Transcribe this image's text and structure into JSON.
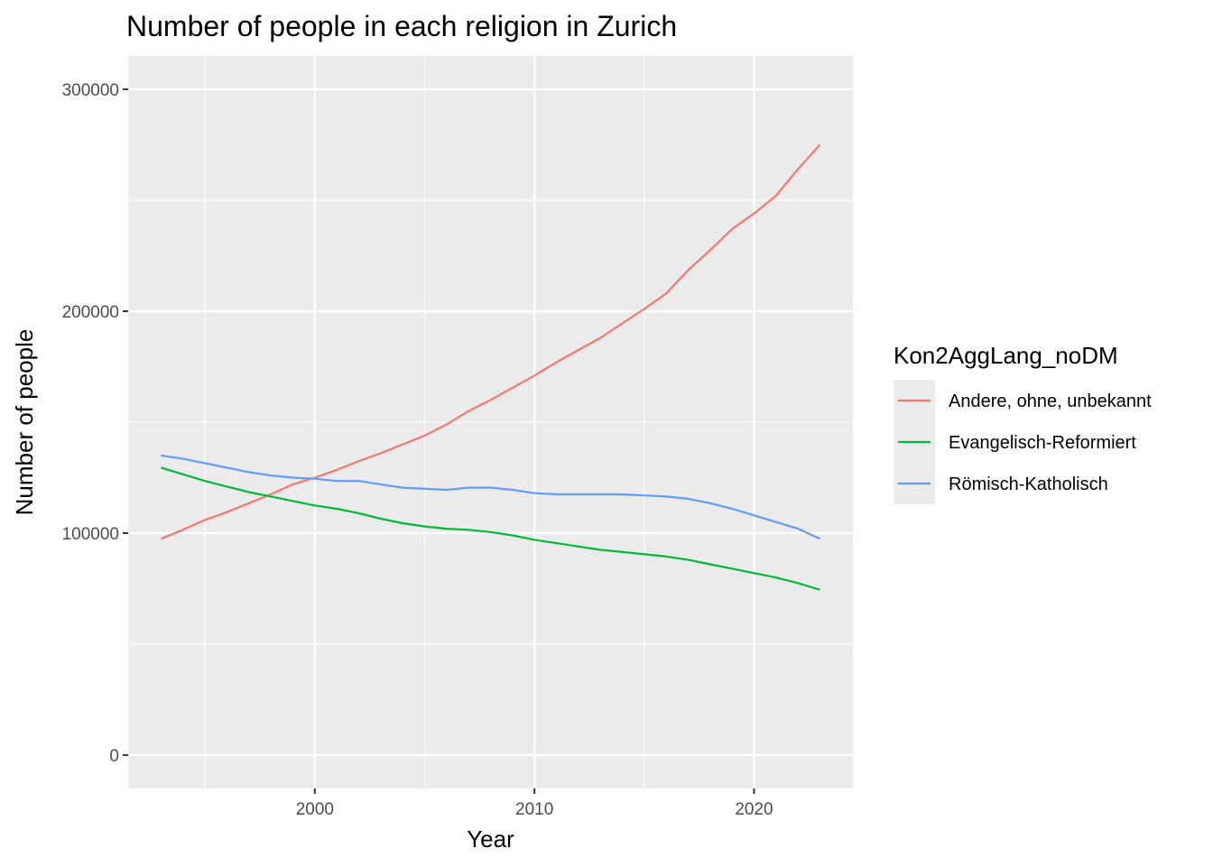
{
  "chart_data": {
    "type": "line",
    "title": "Number of people in each religion in Zurich",
    "xlabel": "Year",
    "ylabel": "Number of people",
    "xlim": [
      1991.5,
      2024.5
    ],
    "ylim": [
      -15000,
      315000
    ],
    "x_ticks": [
      2000,
      2010,
      2020
    ],
    "y_ticks": [
      0,
      100000,
      200000,
      300000
    ],
    "x_tick_labels": [
      "2000",
      "2010",
      "2020"
    ],
    "y_tick_labels": [
      "0",
      "100000",
      "200000",
      "300000"
    ],
    "grid": true,
    "legend_position": "right",
    "legend_title": "Kon2AggLang_noDM",
    "x": [
      1993,
      1994,
      1995,
      1996,
      1997,
      1998,
      1999,
      2000,
      2001,
      2002,
      2003,
      2004,
      2005,
      2006,
      2007,
      2008,
      2009,
      2010,
      2011,
      2012,
      2013,
      2014,
      2015,
      2016,
      2017,
      2018,
      2019,
      2020,
      2021,
      2022,
      2023
    ],
    "series": [
      {
        "name": "Andere, ohne, unbekannt",
        "color": "#F8766D",
        "values": [
          97500,
          101500,
          106000,
          109500,
          113500,
          117500,
          122000,
          125000,
          128500,
          132500,
          136000,
          140000,
          144000,
          149000,
          155000,
          160000,
          165500,
          171000,
          177000,
          182500,
          188000,
          194500,
          201000,
          208000,
          218500,
          227500,
          237000,
          244000,
          252000,
          264000,
          275000
        ]
      },
      {
        "name": "Evangelisch-Reformiert",
        "color": "#00BA38",
        "values": [
          129500,
          126500,
          123500,
          121000,
          118500,
          116500,
          114500,
          112500,
          111000,
          109000,
          106500,
          104500,
          103000,
          102000,
          101500,
          100500,
          99000,
          97000,
          95500,
          94000,
          92500,
          91500,
          90500,
          89500,
          88000,
          86000,
          84000,
          82000,
          80000,
          77500,
          74500
        ]
      },
      {
        "name": "Römisch-Katholisch",
        "color": "#619CFF",
        "values": [
          135000,
          133500,
          131500,
          129500,
          127500,
          126000,
          125000,
          124500,
          123500,
          123500,
          122000,
          120500,
          120000,
          119500,
          120500,
          120500,
          119500,
          118000,
          117500,
          117500,
          117500,
          117500,
          117000,
          116500,
          115500,
          113500,
          111000,
          108000,
          105000,
          102000,
          97500
        ]
      }
    ]
  }
}
